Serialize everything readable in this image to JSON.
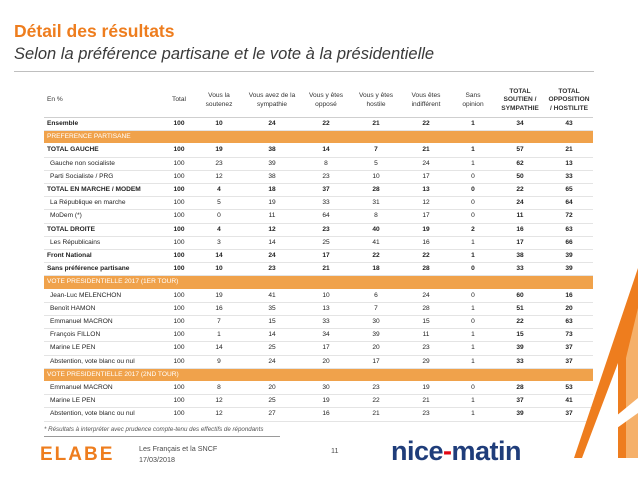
{
  "header": {
    "title": "Détail des résultats",
    "subtitle": "Selon la préférence partisane et le vote à la présidentielle"
  },
  "table": {
    "columns": [
      "En %",
      "Total",
      "Vous la soutenez",
      "Vous avez de la sympathie",
      "Vous y êtes opposé",
      "Vous y êtes hostile",
      "Vous êtes indifférent",
      "Sans opinion",
      "TOTAL SOUTIEN / SYMPATHIE",
      "TOTAL OPPOSITION / HOSTILITE"
    ],
    "rows": [
      {
        "kind": "bold",
        "cells": [
          "Ensemble",
          "100",
          "10",
          "24",
          "22",
          "21",
          "22",
          "1",
          "34",
          "43"
        ]
      },
      {
        "kind": "sep",
        "cells": [
          "PREFERENCE PARTISANE"
        ]
      },
      {
        "kind": "bold",
        "cells": [
          "TOTAL GAUCHE",
          "100",
          "19",
          "38",
          "14",
          "7",
          "21",
          "1",
          "57",
          "21"
        ]
      },
      {
        "kind": "sub",
        "cells": [
          "Gauche non socialiste",
          "100",
          "23",
          "39",
          "8",
          "5",
          "24",
          "1",
          "62",
          "13"
        ]
      },
      {
        "kind": "sub",
        "cells": [
          "Parti Socialiste / PRG",
          "100",
          "12",
          "38",
          "23",
          "10",
          "17",
          "0",
          "50",
          "33"
        ]
      },
      {
        "kind": "bold",
        "cells": [
          "TOTAL EN MARCHE / MODEM",
          "100",
          "4",
          "18",
          "37",
          "28",
          "13",
          "0",
          "22",
          "65"
        ]
      },
      {
        "kind": "sub",
        "cells": [
          "La République en marche",
          "100",
          "5",
          "19",
          "33",
          "31",
          "12",
          "0",
          "24",
          "64"
        ]
      },
      {
        "kind": "sub",
        "cells": [
          "MoDem (*)",
          "100",
          "0",
          "11",
          "64",
          "8",
          "17",
          "0",
          "11",
          "72"
        ]
      },
      {
        "kind": "bold",
        "cells": [
          "TOTAL DROITE",
          "100",
          "4",
          "12",
          "23",
          "40",
          "19",
          "2",
          "16",
          "63"
        ]
      },
      {
        "kind": "sub",
        "cells": [
          "Les Républicains",
          "100",
          "3",
          "14",
          "25",
          "41",
          "16",
          "1",
          "17",
          "66"
        ]
      },
      {
        "kind": "bold",
        "cells": [
          "Front National",
          "100",
          "14",
          "24",
          "17",
          "22",
          "22",
          "1",
          "38",
          "39"
        ]
      },
      {
        "kind": "bold",
        "cells": [
          "Sans préférence partisane",
          "100",
          "10",
          "23",
          "21",
          "18",
          "28",
          "0",
          "33",
          "39"
        ]
      },
      {
        "kind": "sep",
        "cells": [
          "VOTE PRESIDENTIELLE 2017 (1ER TOUR)"
        ]
      },
      {
        "kind": "cand",
        "cells": [
          "Jean-Luc MELENCHON",
          "100",
          "19",
          "41",
          "10",
          "6",
          "24",
          "0",
          "60",
          "16"
        ]
      },
      {
        "kind": "cand",
        "cells": [
          "Benoît HAMON",
          "100",
          "16",
          "35",
          "13",
          "7",
          "28",
          "1",
          "51",
          "20"
        ]
      },
      {
        "kind": "cand",
        "cells": [
          "Emmanuel MACRON",
          "100",
          "7",
          "15",
          "33",
          "30",
          "15",
          "0",
          "22",
          "63"
        ]
      },
      {
        "kind": "cand",
        "cells": [
          "François FILLON",
          "100",
          "1",
          "14",
          "34",
          "39",
          "11",
          "1",
          "15",
          "73"
        ]
      },
      {
        "kind": "cand",
        "cells": [
          "Marine LE PEN",
          "100",
          "14",
          "25",
          "17",
          "20",
          "23",
          "1",
          "39",
          "37"
        ]
      },
      {
        "kind": "cand",
        "cells": [
          "Abstention, vote blanc ou nul",
          "100",
          "9",
          "24",
          "20",
          "17",
          "29",
          "1",
          "33",
          "37"
        ]
      },
      {
        "kind": "sep",
        "cells": [
          "VOTE PRESIDENTIELLE 2017 (2ND TOUR)"
        ]
      },
      {
        "kind": "cand",
        "cells": [
          "Emmanuel MACRON",
          "100",
          "8",
          "20",
          "30",
          "23",
          "19",
          "0",
          "28",
          "53"
        ]
      },
      {
        "kind": "cand",
        "cells": [
          "Marine LE PEN",
          "100",
          "12",
          "25",
          "19",
          "22",
          "21",
          "1",
          "37",
          "41"
        ]
      },
      {
        "kind": "cand",
        "cells": [
          "Abstention, vote blanc ou nul",
          "100",
          "12",
          "27",
          "16",
          "21",
          "23",
          "1",
          "39",
          "37"
        ]
      }
    ]
  },
  "footnote": "* Résultats à interpréter avec prudence compte-tenu des effectifs de répondants",
  "footer": {
    "logo_left": "ELABE",
    "doc_title": "Les Français et la SNCF",
    "date": "17/03/2018",
    "page_number": "11",
    "logo_right_a": "nice",
    "logo_right_dot": "-",
    "logo_right_b": "matin"
  },
  "colors": {
    "accent_orange": "#ee7d1e",
    "section_band": "#f0a24b",
    "nice_matin_blue": "#1f3d7a",
    "nice_matin_red": "#e30613"
  }
}
